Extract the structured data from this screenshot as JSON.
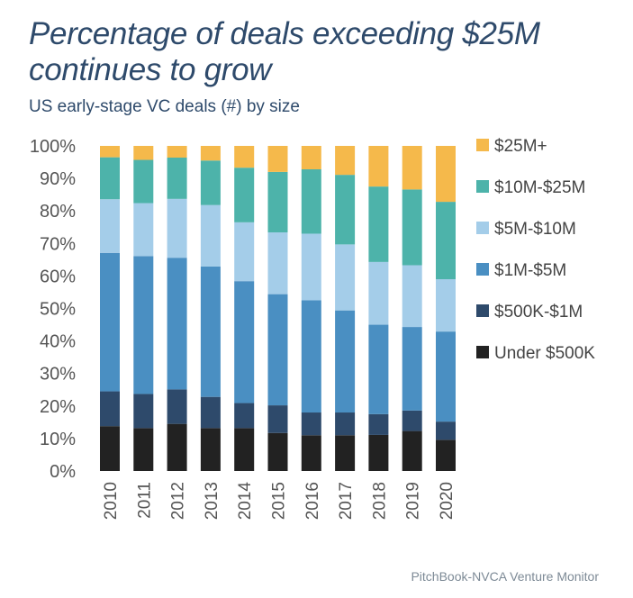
{
  "header": {
    "title_line1": "Percentage of deals exceeding $25M",
    "title_line2": "continues to grow",
    "subtitle": "US early-stage VC deals (#) by size"
  },
  "footer": {
    "source": "PitchBook-NVCA Venture Monitor"
  },
  "chart_data": {
    "type": "bar",
    "stacked": true,
    "title": "Percentage of deals exceeding $25M continues to grow",
    "subtitle": "US early-stage VC deals (#) by size",
    "categories": [
      "2010",
      "2011",
      "2012",
      "2013",
      "2014",
      "2015",
      "2016",
      "2017",
      "2018",
      "2019",
      "2020"
    ],
    "ylim": [
      0,
      100
    ],
    "yticks": [
      "0%",
      "10%",
      "20%",
      "30%",
      "40%",
      "50%",
      "60%",
      "70%",
      "80%",
      "90%",
      "100%"
    ],
    "legend_position": "right",
    "grid": false,
    "series": [
      {
        "name": "Under $500K",
        "color": "#222222",
        "values": [
          13.8,
          13.2,
          14.5,
          13.2,
          13.2,
          11.7,
          11.0,
          11.0,
          11.1,
          12.3,
          9.6
        ]
      },
      {
        "name": "$500K-$1M",
        "color": "#2e4a6b",
        "values": [
          10.7,
          10.5,
          10.6,
          9.6,
          7.7,
          8.5,
          7.0,
          7.0,
          6.4,
          6.3,
          5.6
        ]
      },
      {
        "name": "$1M-$5M",
        "color": "#4a8fc2",
        "values": [
          42.6,
          42.4,
          40.5,
          40.1,
          37.5,
          34.2,
          34.5,
          31.4,
          27.5,
          25.7,
          27.7
        ]
      },
      {
        "name": "$5M-$10M",
        "color": "#a4cde9",
        "values": [
          16.5,
          16.3,
          18.1,
          18.9,
          18.1,
          19.0,
          20.5,
          20.3,
          19.3,
          19.0,
          16.1
        ]
      },
      {
        "name": "$10M-$25M",
        "color": "#4db3aa",
        "values": [
          12.9,
          13.3,
          12.7,
          13.7,
          16.8,
          18.6,
          19.8,
          21.4,
          23.2,
          23.3,
          23.8
        ]
      },
      {
        "name": "$25M+",
        "color": "#f5b94b",
        "values": [
          3.5,
          4.3,
          3.6,
          4.5,
          6.7,
          8.0,
          7.2,
          8.9,
          12.5,
          13.4,
          17.2
        ]
      }
    ]
  }
}
